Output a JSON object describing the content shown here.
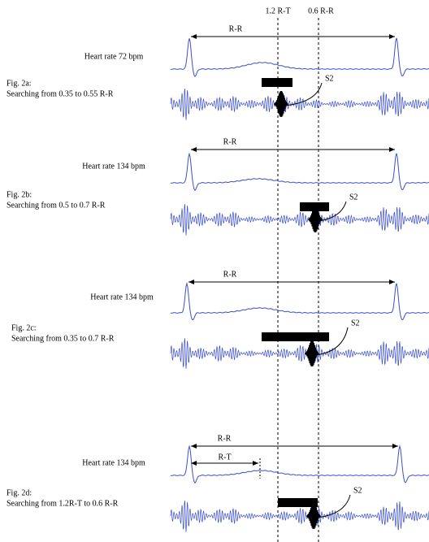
{
  "header": {
    "left_marker": "1.2 R-T",
    "right_marker": "0.6 R-R"
  },
  "panels": [
    {
      "rr_label": "R-R",
      "heart_rate": "Heart rate 72 bpm",
      "fig": "Fig. 2a:",
      "search": "Searching from 0.35 to 0.55 R-R",
      "s2": "S2"
    },
    {
      "rr_label": "R-R",
      "heart_rate": "Heart rate 134 bpm",
      "fig": "Fig. 2b:",
      "search": "Searching from 0.5 to 0.7 R-R",
      "s2": "S2"
    },
    {
      "rr_label": "R-R",
      "heart_rate": "Heart rate 134 bpm",
      "fig": "Fig. 2c:",
      "search": "Searching from 0.35 to 0.7 R-R",
      "s2": "S2"
    },
    {
      "rr_label": "R-R",
      "rt_label": "R-T",
      "heart_rate": "Heart rate 134 bpm",
      "fig": "Fig. 2d:",
      "search": "Searching from 1.2R-T to 0.6 R-R",
      "s2": "S2"
    }
  ]
}
